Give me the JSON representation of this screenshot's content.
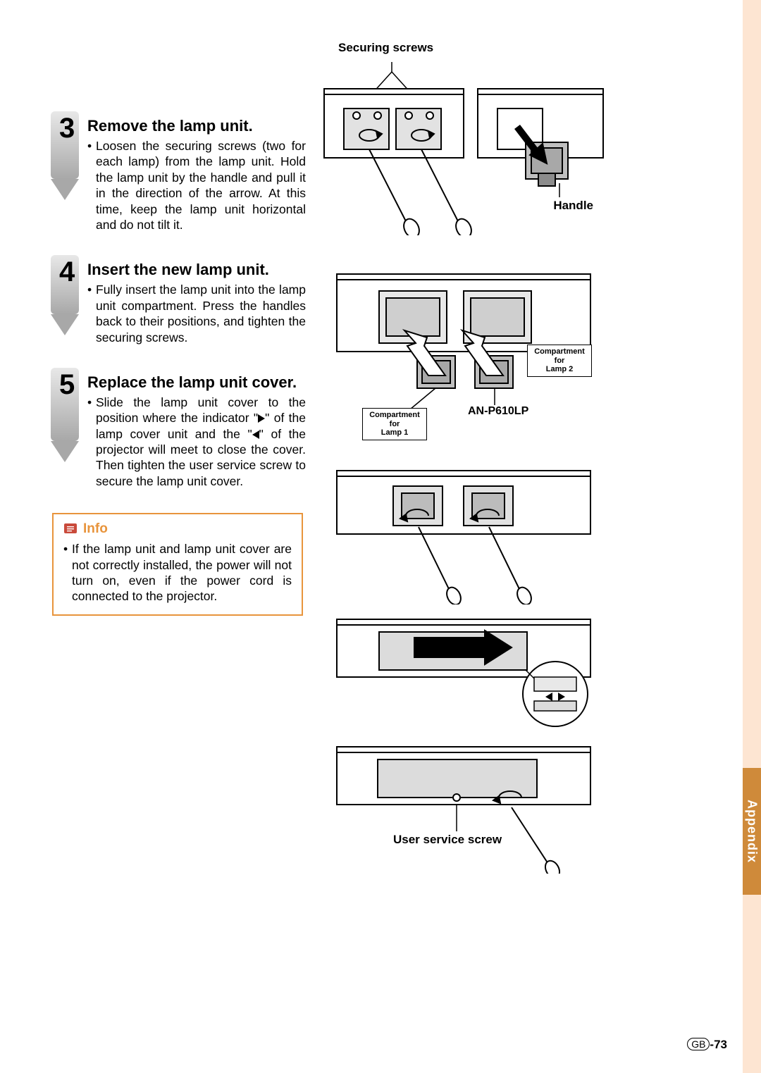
{
  "steps": [
    {
      "num": "3",
      "title": "Remove the lamp unit.",
      "body": "Loosen the securing screws (two for each lamp) from the lamp unit. Hold the lamp unit by the handle and pull it in the direction of the arrow. At this time, keep the lamp unit horizontal and do not tilt it.",
      "badge_fill": "#d8d8d8"
    },
    {
      "num": "4",
      "title": "Insert the new lamp unit.",
      "body": "Fully insert the lamp unit into the lamp unit compartment. Press the handles back to their positions, and tighten the securing screws.",
      "badge_fill": "#d8d8d8"
    },
    {
      "num": "5",
      "title": "Replace the lamp unit cover.",
      "body_html": true,
      "body": "Slide the lamp unit cover to the position where the indicator \"▶\" of the lamp cover unit and the \"◀\" of the projector will meet to close the cover. Then tighten the user service screw to secure the lamp unit cover.",
      "badge_fill": "#d8d8d8"
    }
  ],
  "info": {
    "label": "Info",
    "icon_color": "#c94a3b",
    "border_color": "#e8943c",
    "body": "If the lamp unit and lamp unit cover are not correctly installed, the power will not turn on, even if the power cord is connected to the projector."
  },
  "right_labels": {
    "securing_screws": "Securing screws",
    "handle": "Handle",
    "compartment1": "Compartment for Lamp 1",
    "compartment2": "Compartment for Lamp 2",
    "model": "AN-P610LP",
    "user_service_screw": "User service screw"
  },
  "appendix": "Appendix",
  "page_num": {
    "prefix": "GB",
    "num": "-73"
  },
  "colors": {
    "peach": "#fde5d2",
    "tab": "#cf8a3a",
    "badge_dark": "#9a9a9a",
    "badge_light": "#e8e8e8"
  }
}
